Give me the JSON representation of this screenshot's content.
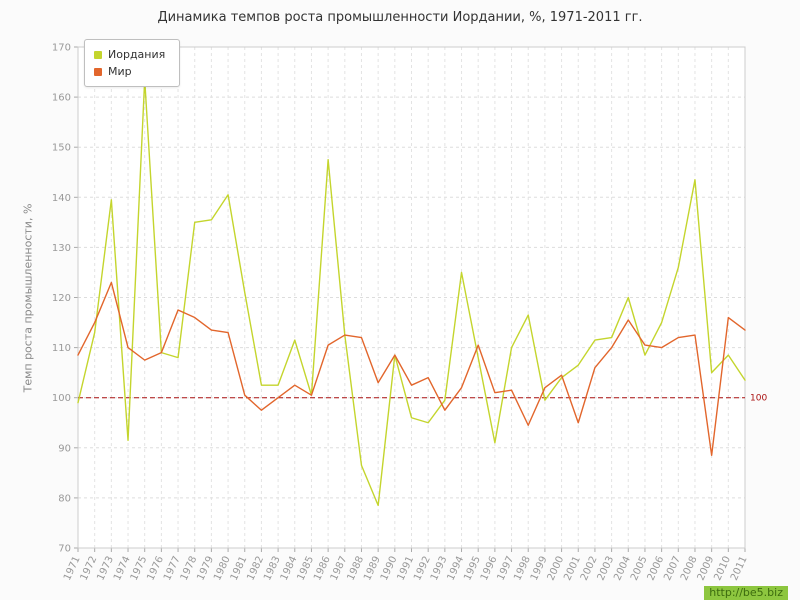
{
  "watermark": "http://be5.biz",
  "chart_data": {
    "type": "line",
    "title": "Динамика темпов роста промышленности Иордании, %, 1971-2011 гг.",
    "xlabel": "",
    "ylabel": "Темп роста промышленности, %",
    "ylim": [
      70,
      170
    ],
    "ytick_step": 10,
    "grid": true,
    "legend_position": "top-left",
    "reference_line": {
      "value": 100,
      "label": "100",
      "color": "#aa1111"
    },
    "categories": [
      1971,
      1972,
      1973,
      1974,
      1975,
      1976,
      1977,
      1978,
      1979,
      1980,
      1981,
      1982,
      1983,
      1984,
      1985,
      1986,
      1987,
      1988,
      1989,
      1990,
      1991,
      1992,
      1993,
      1994,
      1995,
      1996,
      1997,
      1998,
      1999,
      2000,
      2001,
      2002,
      2003,
      2004,
      2005,
      2006,
      2007,
      2008,
      2009,
      2010,
      2011
    ],
    "series": [
      {
        "name": "Иордания",
        "color": "#c4d52d",
        "values": [
          99,
          113,
          139.5,
          91.5,
          163.5,
          109,
          108,
          135,
          135.5,
          140.5,
          121,
          102.5,
          102.5,
          111.5,
          100.5,
          147.5,
          112.5,
          86.5,
          78.5,
          108.5,
          96,
          95,
          99.5,
          125,
          108,
          91,
          110,
          116.5,
          99.5,
          104,
          106.5,
          111.5,
          112,
          120,
          108.5,
          115,
          126,
          143.5,
          105,
          108.5,
          103.5
        ]
      },
      {
        "name": "Мир",
        "color": "#e2662c",
        "values": [
          108.5,
          115,
          123,
          110,
          107.5,
          109,
          117.5,
          116,
          113.5,
          113,
          100.5,
          97.5,
          100,
          102.5,
          100.5,
          110.5,
          112.5,
          112,
          103,
          108.5,
          102.5,
          104,
          97.5,
          102,
          110.5,
          101,
          101.5,
          94.5,
          102,
          104.5,
          95,
          106,
          110,
          115.5,
          110.5,
          110,
          112,
          112.5,
          88.5,
          116,
          113.5
        ]
      }
    ]
  }
}
